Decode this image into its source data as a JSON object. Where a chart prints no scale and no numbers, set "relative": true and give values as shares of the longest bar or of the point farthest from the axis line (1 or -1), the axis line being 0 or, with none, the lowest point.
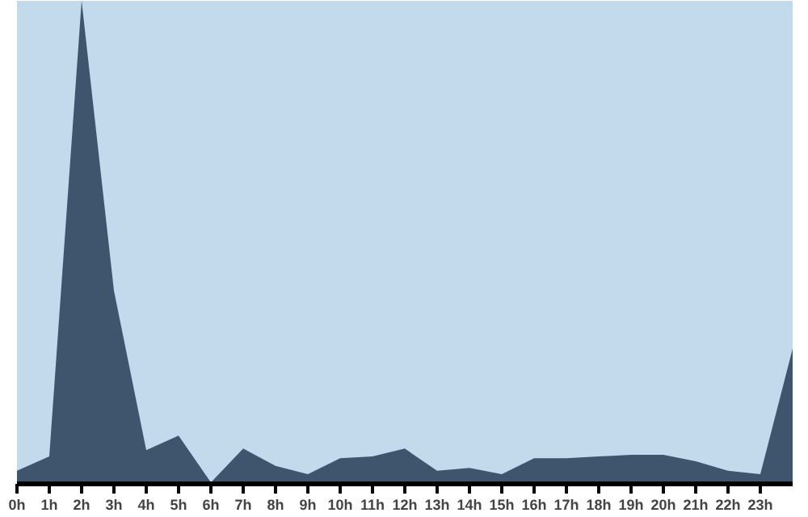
{
  "chart_data": {
    "type": "area",
    "relative": true,
    "categories": [
      "0h",
      "1h",
      "2h",
      "3h",
      "4h",
      "5h",
      "6h",
      "7h",
      "8h",
      "9h",
      "10h",
      "11h",
      "12h",
      "13h",
      "14h",
      "15h",
      "16h",
      "17h",
      "18h",
      "19h",
      "20h",
      "21h",
      "22h",
      "23h",
      null
    ],
    "series": [
      {
        "color": "#3f556e",
        "values": [
          0.027,
          0.057,
          1.0,
          0.4,
          0.07,
          0.1,
          0.003,
          0.073,
          0.037,
          0.02,
          0.053,
          0.057,
          0.073,
          0.027,
          0.033,
          0.02,
          0.053,
          0.053,
          0.057,
          0.06,
          0.06,
          0.047,
          0.027,
          0.02,
          0.28
        ]
      }
    ],
    "marker": "none"
  }
}
